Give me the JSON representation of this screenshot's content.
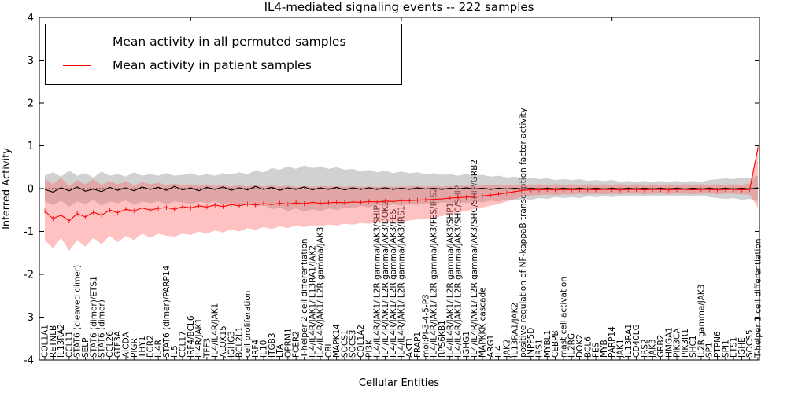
{
  "title": "IL4-mediated signaling events -- 222 samples",
  "legend": [
    {
      "label": "Mean activity in all permuted samples",
      "color": "#000000"
    },
    {
      "label": "Mean activity in patient samples",
      "color": "#ff0000"
    }
  ],
  "chart_data": {
    "type": "line",
    "title": "IL4-mediated signaling events -- 222 samples",
    "xlabel": "Cellular Entities",
    "ylabel": "Inferred Activity",
    "ylim": [
      -4,
      4
    ],
    "yticks": [
      -4,
      -3,
      -2,
      -1,
      0,
      1,
      2,
      3,
      4
    ],
    "grid": false,
    "legend_position": "upper left",
    "zero_line": {
      "style": "dotted",
      "color": "#000000",
      "y": 0
    },
    "top_tick_indices": [
      18,
      44,
      70
    ],
    "categories": [
      "COL1A1",
      "RETNLB",
      "IL13RA2",
      "CCL11",
      "STAT6 (cleaved dimer)",
      "SELP",
      "STAT6 (dimer)/ETS1",
      "STAT6 (dimer)",
      "CCL26",
      "GTF3A",
      "AICDA",
      "PIGR",
      "THY1",
      "EGR2",
      "IL4R",
      "STAT6 (dimer)/PARP14",
      "IL5",
      "CCL17",
      "IRF4/BCL6",
      "IL4R/JAK1",
      "TFF3",
      "IL4/IL4R/JAK1",
      "ALOX15",
      "IGHG3",
      "BCL2L1",
      "cell proliferation",
      "IRF4",
      "IL10",
      "ITGB3",
      "LTA",
      "OPRM1",
      "FCER2",
      "T-helper 2 cell differentiation",
      "IL4/IL4R/JAK1/IL13RA1/JAK2",
      "IL4/IL4R/JAK1/IL2R gamma/JAK3",
      "CBL",
      "MAPK14",
      "SOCS1",
      "SOCS3",
      "COL1A2",
      "PI3K",
      "IL4/IL4R/JAK1/IL2R gamma/JAK3/SHIP",
      "IL4/IL4R/JAK1/IL2R gamma/JAK3/DOK2",
      "IL4/IL4R/JAK1/IL2R gamma/JAK3/FES",
      "IL4/IL4R/JAK1/IL2R gamma/JAK3/IRS1",
      "AKT1",
      "FRAP1",
      "mol:PI-3-4-5-P3",
      "IL4/IL4R/JAK1/IL2R gamma/JAK3/FES/IRS2",
      "RPS6KB1",
      "IL4/IL4R/JAK1/IL2R gamma/JAK3/SHP1",
      "IL4/IL4R/JAK1/IL2R gamma/JAK3/SHC/SHIP",
      "IGHG1",
      "IL4/IL4R/JAK1/IL2R gamma/JAK3/SHC/SHIP/GRB2",
      "MAPKKK cascade",
      "ARG1",
      "IL4",
      "JAK2",
      "IL13RA1/JAK2",
      "positive regulation of NF-kappaB transcription factor activity",
      "INPP5D",
      "IRS1",
      "MYBL1",
      "CEBPB",
      "mast cell activation",
      "IL2RG",
      "DOK2",
      "BCL6",
      "FES",
      "MYB",
      "PARP14",
      "JAK1",
      "IL13RA1",
      "CD40LG",
      "IRS2",
      "JAK3",
      "GRB2",
      "HMGA1",
      "PIK3CA",
      "PIK3R1",
      "SHC1",
      "IL2R gamma/JAK3",
      "SP1",
      "PTPN6",
      "SPI1",
      "ETS1",
      "IGHE",
      "SOCS5",
      "T-helper 1 cell differentiation"
    ],
    "series": [
      {
        "name": "Mean activity in all permuted samples",
        "color": "#000000",
        "values": [
          -0.02,
          -0.08,
          0.02,
          -0.05,
          0.04,
          -0.06,
          -0.01,
          -0.07,
          0.03,
          -0.04,
          0.02,
          -0.05,
          0.04,
          -0.02,
          0.03,
          -0.04,
          0.05,
          -0.03,
          0.02,
          -0.05,
          0.03,
          -0.02,
          0.04,
          -0.04,
          0.02,
          -0.03,
          0.05,
          -0.02,
          0.03,
          -0.04,
          0.02,
          -0.02,
          0.04,
          -0.03,
          0.02,
          -0.02,
          0.03,
          -0.03,
          0.02,
          -0.02,
          0.02,
          -0.02,
          0.02,
          -0.02,
          0.01,
          -0.02,
          0.02,
          -0.01,
          0.01,
          -0.02,
          0.01,
          -0.01,
          0.02,
          -0.01,
          0.01,
          -0.02,
          0.01,
          -0.01,
          0.01,
          -0.01,
          0.01,
          -0.01,
          0.01,
          -0.01,
          0.01,
          -0.01,
          0.01,
          -0.01,
          0.01,
          -0.01,
          0.01,
          -0.01,
          0.01,
          -0.01,
          0.01,
          -0.01,
          0.01,
          -0.01,
          0.01,
          -0.01,
          0.01,
          -0.01,
          0.01,
          -0.01,
          0.01,
          -0.01,
          0.01,
          -0.01,
          0.02
        ]
      },
      {
        "name": "Mean activity in patient samples",
        "color": "#ff0000",
        "values": [
          -0.52,
          -0.7,
          -0.62,
          -0.75,
          -0.58,
          -0.66,
          -0.55,
          -0.62,
          -0.5,
          -0.56,
          -0.48,
          -0.52,
          -0.45,
          -0.5,
          -0.46,
          -0.44,
          -0.48,
          -0.42,
          -0.45,
          -0.4,
          -0.43,
          -0.38,
          -0.42,
          -0.37,
          -0.4,
          -0.36,
          -0.38,
          -0.35,
          -0.37,
          -0.34,
          -0.36,
          -0.33,
          -0.35,
          -0.32,
          -0.34,
          -0.33,
          -0.32,
          -0.33,
          -0.31,
          -0.32,
          -0.3,
          -0.31,
          -0.29,
          -0.3,
          -0.28,
          -0.28,
          -0.27,
          -0.26,
          -0.25,
          -0.24,
          -0.22,
          -0.21,
          -0.2,
          -0.18,
          -0.17,
          -0.15,
          -0.13,
          -0.1,
          -0.07,
          -0.04,
          -0.03,
          -0.03,
          -0.02,
          -0.03,
          -0.02,
          -0.03,
          -0.02,
          -0.02,
          -0.03,
          -0.02,
          -0.02,
          -0.03,
          -0.02,
          -0.02,
          -0.03,
          -0.02,
          -0.02,
          -0.03,
          -0.02,
          -0.02,
          -0.03,
          -0.02,
          -0.02,
          -0.03,
          -0.02,
          -0.02,
          -0.03,
          -0.02,
          0.95
        ]
      }
    ],
    "bands": [
      {
        "name": "permuted-samples-range",
        "color": "#999999",
        "opacity": 0.45,
        "upper": [
          0.3,
          0.38,
          0.28,
          0.42,
          0.3,
          0.36,
          0.26,
          0.4,
          0.3,
          0.34,
          0.28,
          0.38,
          0.3,
          0.34,
          0.3,
          0.36,
          0.3,
          0.32,
          0.36,
          0.3,
          0.34,
          0.3,
          0.36,
          0.32,
          0.38,
          0.34,
          0.42,
          0.38,
          0.48,
          0.44,
          0.52,
          0.46,
          0.54,
          0.48,
          0.52,
          0.46,
          0.5,
          0.44,
          0.46,
          0.4,
          0.44,
          0.38,
          0.42,
          0.36,
          0.4,
          0.36,
          0.38,
          0.34,
          0.36,
          0.32,
          0.34,
          0.3,
          0.34,
          0.3,
          0.32,
          0.28,
          0.3,
          0.26,
          0.28,
          0.24,
          0.26,
          0.22,
          0.24,
          0.2,
          0.22,
          0.2,
          0.22,
          0.18,
          0.2,
          0.18,
          0.2,
          0.16,
          0.18,
          0.16,
          0.18,
          0.16,
          0.18,
          0.16,
          0.18,
          0.16,
          0.18,
          0.16,
          0.2,
          0.22,
          0.24,
          0.22,
          0.26,
          0.24,
          0.3
        ],
        "lower": [
          -0.3,
          -0.38,
          -0.28,
          -0.42,
          -0.3,
          -0.36,
          -0.26,
          -0.4,
          -0.3,
          -0.34,
          -0.28,
          -0.38,
          -0.3,
          -0.34,
          -0.3,
          -0.36,
          -0.3,
          -0.32,
          -0.36,
          -0.3,
          -0.34,
          -0.3,
          -0.36,
          -0.32,
          -0.38,
          -0.34,
          -0.42,
          -0.38,
          -0.48,
          -0.44,
          -0.52,
          -0.46,
          -0.54,
          -0.48,
          -0.52,
          -0.46,
          -0.5,
          -0.44,
          -0.46,
          -0.4,
          -0.44,
          -0.38,
          -0.42,
          -0.36,
          -0.4,
          -0.36,
          -0.38,
          -0.34,
          -0.36,
          -0.32,
          -0.34,
          -0.3,
          -0.34,
          -0.3,
          -0.32,
          -0.28,
          -0.3,
          -0.26,
          -0.28,
          -0.24,
          -0.26,
          -0.22,
          -0.24,
          -0.2,
          -0.22,
          -0.2,
          -0.22,
          -0.18,
          -0.2,
          -0.18,
          -0.2,
          -0.16,
          -0.18,
          -0.16,
          -0.18,
          -0.16,
          -0.18,
          -0.16,
          -0.18,
          -0.16,
          -0.18,
          -0.16,
          -0.2,
          -0.22,
          -0.24,
          -0.22,
          -0.26,
          -0.24,
          -0.3
        ]
      },
      {
        "name": "patient-samples-range",
        "color": "#ff6666",
        "opacity": 0.4,
        "upper": [
          0.22,
          0.1,
          0.25,
          0.05,
          0.2,
          0.1,
          0.22,
          0.08,
          0.18,
          0.1,
          0.16,
          0.08,
          0.15,
          0.1,
          0.14,
          0.08,
          0.12,
          0.08,
          0.1,
          0.06,
          0.1,
          0.06,
          0.08,
          0.05,
          0.08,
          0.05,
          0.08,
          0.05,
          0.07,
          0.05,
          0.07,
          0.04,
          0.06,
          0.04,
          0.06,
          0.05,
          0.06,
          0.04,
          0.06,
          0.04,
          0.05,
          0.04,
          0.05,
          0.04,
          0.05,
          0.05,
          0.06,
          0.05,
          0.06,
          0.05,
          0.06,
          0.06,
          0.07,
          0.06,
          0.07,
          0.07,
          0.08,
          0.08,
          0.09,
          0.1,
          0.09,
          0.1,
          0.09,
          0.1,
          0.09,
          0.1,
          0.09,
          0.1,
          0.09,
          0.1,
          0.09,
          0.1,
          0.09,
          0.1,
          0.09,
          0.1,
          0.09,
          0.1,
          0.09,
          0.1,
          0.09,
          0.1,
          0.09,
          0.1,
          0.09,
          0.1,
          0.09,
          0.12,
          0.95
        ],
        "lower": [
          -1.2,
          -1.4,
          -1.15,
          -1.45,
          -1.2,
          -1.35,
          -1.15,
          -1.3,
          -1.1,
          -1.25,
          -1.1,
          -1.2,
          -1.05,
          -1.15,
          -1.05,
          -1.1,
          -1.12,
          -1.05,
          -1.08,
          -1.0,
          -1.05,
          -0.98,
          -1.02,
          -0.95,
          -1.0,
          -0.92,
          -0.96,
          -0.9,
          -0.94,
          -0.88,
          -0.92,
          -0.86,
          -0.9,
          -0.85,
          -0.88,
          -0.84,
          -0.86,
          -0.82,
          -0.84,
          -0.8,
          -0.82,
          -0.78,
          -0.8,
          -0.76,
          -0.78,
          -0.74,
          -0.72,
          -0.7,
          -0.68,
          -0.64,
          -0.6,
          -0.56,
          -0.52,
          -0.48,
          -0.44,
          -0.4,
          -0.36,
          -0.3,
          -0.24,
          -0.18,
          -0.16,
          -0.15,
          -0.14,
          -0.15,
          -0.13,
          -0.14,
          -0.12,
          -0.13,
          -0.12,
          -0.13,
          -0.12,
          -0.13,
          -0.12,
          -0.12,
          -0.13,
          -0.12,
          -0.12,
          -0.13,
          -0.12,
          -0.12,
          -0.13,
          -0.12,
          -0.12,
          -0.13,
          -0.12,
          -0.12,
          -0.13,
          -0.14,
          -0.45
        ]
      }
    ]
  }
}
